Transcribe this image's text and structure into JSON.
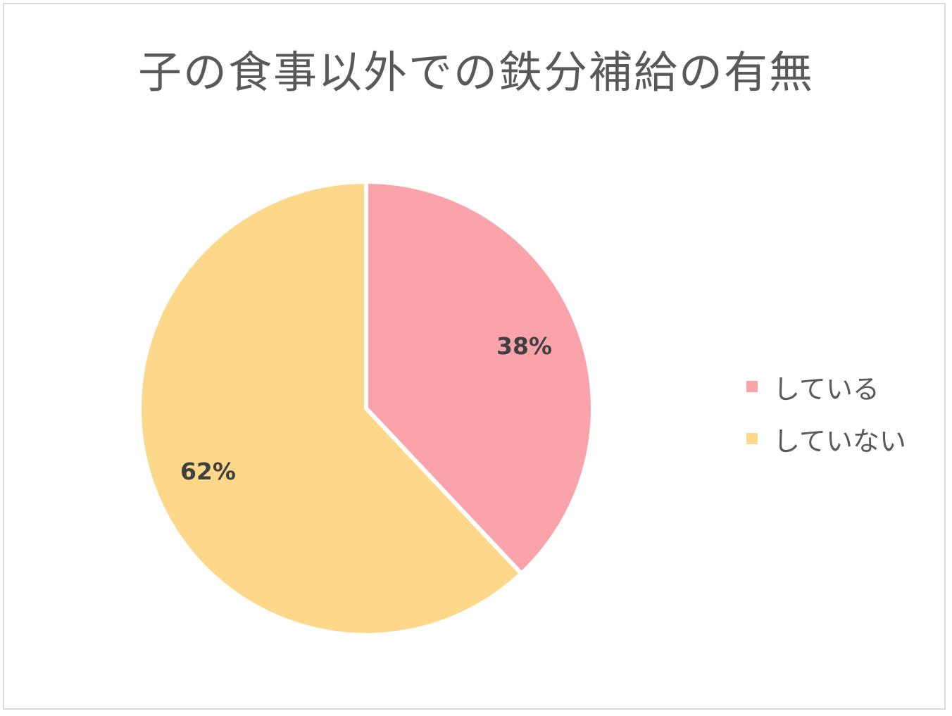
{
  "chart_data": {
    "type": "pie",
    "title": "子の食事以外での鉄分補給の有無",
    "categories": [
      "している",
      "していない"
    ],
    "values": [
      38,
      62
    ],
    "labels": [
      "38%",
      "62%"
    ],
    "colors": [
      "#fba3ab",
      "#fdd88a"
    ],
    "legend": "right"
  }
}
